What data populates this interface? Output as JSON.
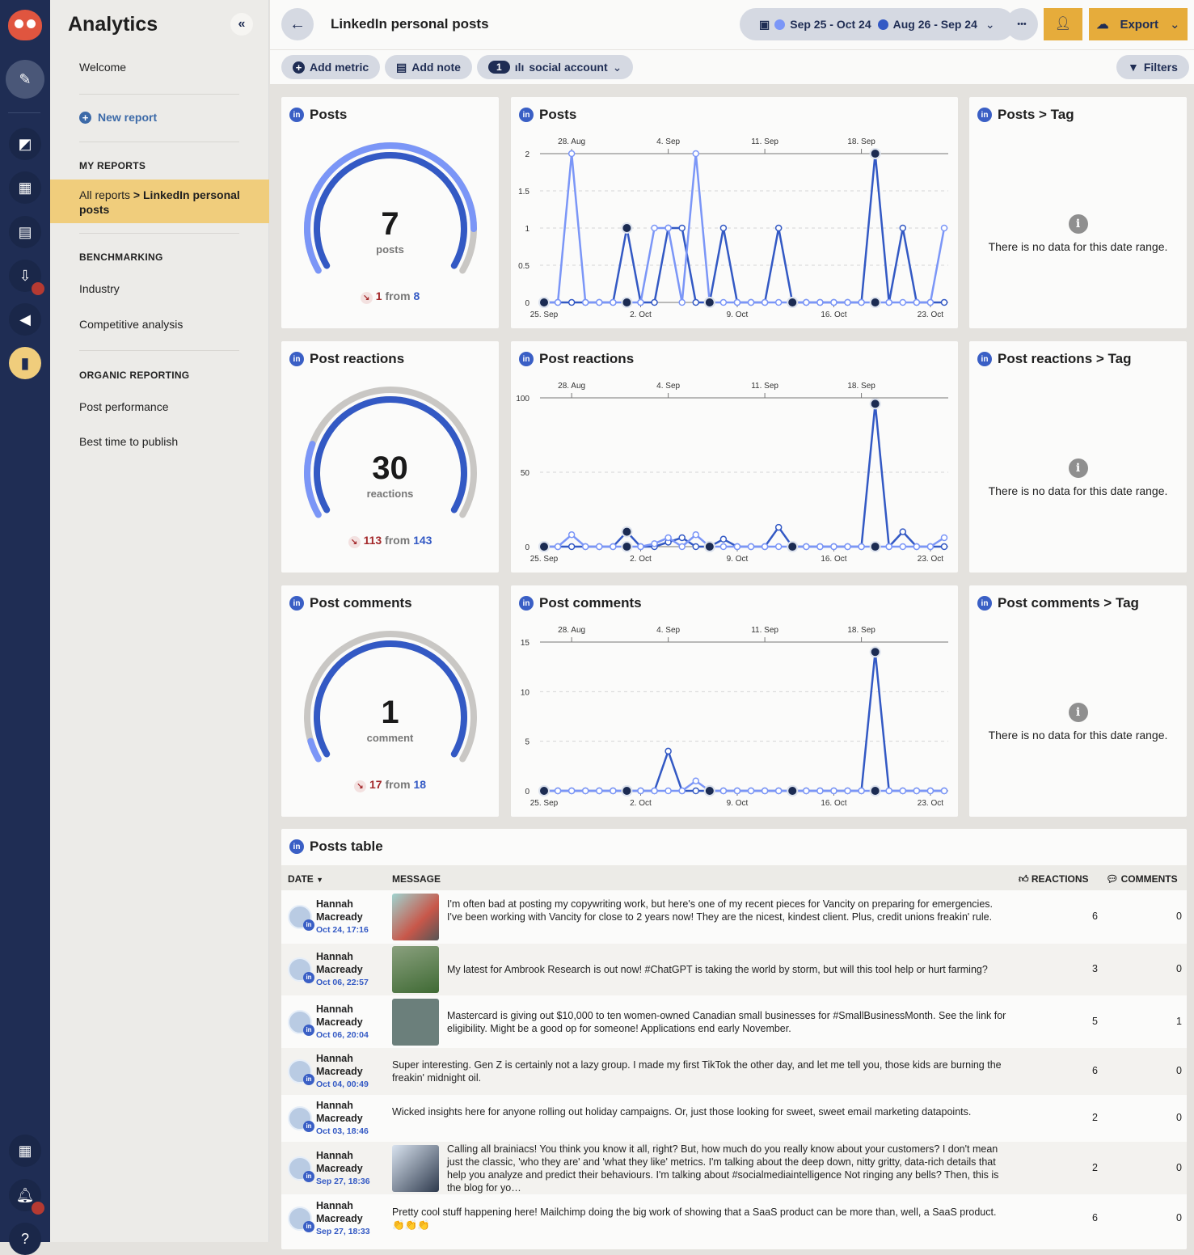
{
  "app": {
    "title": "Analytics",
    "collapse_icon": "double-chevron-left-icon"
  },
  "rail": {
    "icons": [
      "owl-logo",
      "compose-icon",
      "planner-icon",
      "dashboard-icon",
      "calendar-icon",
      "inbox-icon",
      "megaphone-icon",
      "analytics-icon",
      "apps-icon",
      "bell-icon",
      "help-icon"
    ],
    "active_color": "#f0cd7c",
    "badge_color": "#b53a32"
  },
  "sidebar": {
    "welcome": "Welcome",
    "new_report": "New report",
    "my_reports": "MY REPORTS",
    "crumb_prefix": "All reports",
    "crumb_sep": " > ",
    "crumb_current": "LinkedIn personal posts",
    "benchmarking": "BENCHMARKING",
    "industry": "Industry",
    "competitive": "Competitive analysis",
    "organic": "ORGANIC REPORTING",
    "post_performance": "Post performance",
    "best_time": "Best time to publish"
  },
  "header": {
    "title": "LinkedIn personal posts",
    "range_current": "Sep 25 - Oct 24",
    "range_previous": "Aug 26 - Sep 24",
    "current_color": "#7b96f7",
    "previous_color": "#3359c4",
    "more": "•••",
    "export": "Export",
    "accent": "#e6ac3b"
  },
  "toolbar": {
    "add_metric": "Add metric",
    "add_note": "Add note",
    "account_count": "1",
    "account_label": "social account",
    "filters": "Filters"
  },
  "gauges": [
    {
      "title": "Posts",
      "value": "7",
      "unit": "posts",
      "delta": "1",
      "from": "from",
      "previous": "8"
    },
    {
      "title": "Post reactions",
      "value": "30",
      "unit": "reactions",
      "delta": "113",
      "from": "from",
      "previous": "143"
    },
    {
      "title": "Post comments",
      "value": "1",
      "unit": "comment",
      "delta": "17",
      "from": "from",
      "previous": "18"
    }
  ],
  "tag_cards": [
    {
      "title": "Posts > Tag",
      "message": "There is no data for this date range."
    },
    {
      "title": "Post reactions > Tag",
      "message": "There is no data for this date range."
    },
    {
      "title": "Post comments > Tag",
      "message": "There is no data for this date range."
    }
  ],
  "chart_data": [
    {
      "type": "line",
      "title": "Posts",
      "ylim": [
        0,
        2
      ],
      "yticks": [
        "0",
        "0.5",
        "1",
        "1.5",
        "2"
      ],
      "ytick_values": [
        0,
        0.5,
        1,
        1.5,
        2
      ],
      "x_current_ticks": [
        "25. Sep",
        "2. Oct",
        "9. Oct",
        "16. Oct",
        "23. Oct"
      ],
      "x_previous_ticks": [
        "28. Aug",
        "4. Sep",
        "11. Sep",
        "18. Sep"
      ],
      "series": [
        {
          "name": "Sep 25 - Oct 24",
          "values": [
            0,
            0,
            2,
            0,
            0,
            0,
            0,
            0,
            1,
            1,
            0,
            2,
            0,
            0,
            0,
            0,
            0,
            0,
            0,
            0,
            0,
            0,
            0,
            0,
            0,
            0,
            0,
            0,
            0,
            1
          ]
        },
        {
          "name": "Aug 26 - Sep 24",
          "values": [
            0,
            0,
            0,
            0,
            0,
            0,
            1,
            0,
            0,
            1,
            1,
            0,
            0,
            1,
            0,
            0,
            0,
            1,
            0,
            0,
            0,
            0,
            0,
            0,
            2,
            0,
            1,
            0,
            0,
            0
          ]
        }
      ]
    },
    {
      "type": "line",
      "title": "Post reactions",
      "ylim": [
        0,
        100
      ],
      "yticks": [
        "0",
        "50",
        "100"
      ],
      "ytick_values": [
        0,
        50,
        100
      ],
      "x_current_ticks": [
        "25. Sep",
        "2. Oct",
        "9. Oct",
        "16. Oct",
        "23. Oct"
      ],
      "x_previous_ticks": [
        "28. Aug",
        "4. Sep",
        "11. Sep",
        "18. Sep"
      ],
      "series": [
        {
          "name": "Sep 25 - Oct 24",
          "values": [
            0,
            0,
            8,
            0,
            0,
            0,
            0,
            0,
            2,
            6,
            0,
            8,
            0,
            0,
            0,
            0,
            0,
            0,
            0,
            0,
            0,
            0,
            0,
            0,
            0,
            0,
            0,
            0,
            0,
            6
          ]
        },
        {
          "name": "Aug 26 - Sep 24",
          "values": [
            0,
            0,
            0,
            0,
            0,
            0,
            10,
            0,
            0,
            3,
            6,
            0,
            0,
            5,
            0,
            0,
            0,
            13,
            0,
            0,
            0,
            0,
            0,
            0,
            96,
            0,
            10,
            0,
            0,
            0
          ]
        }
      ]
    },
    {
      "type": "line",
      "title": "Post comments",
      "ylim": [
        0,
        15
      ],
      "yticks": [
        "0",
        "5",
        "10",
        "15"
      ],
      "ytick_values": [
        0,
        5,
        10,
        15
      ],
      "x_current_ticks": [
        "25. Sep",
        "2. Oct",
        "9. Oct",
        "16. Oct",
        "23. Oct"
      ],
      "x_previous_ticks": [
        "28. Aug",
        "4. Sep",
        "11. Sep",
        "18. Sep"
      ],
      "series": [
        {
          "name": "Sep 25 - Oct 24",
          "values": [
            0,
            0,
            0,
            0,
            0,
            0,
            0,
            0,
            0,
            0,
            0,
            1,
            0,
            0,
            0,
            0,
            0,
            0,
            0,
            0,
            0,
            0,
            0,
            0,
            0,
            0,
            0,
            0,
            0,
            0
          ]
        },
        {
          "name": "Aug 26 - Sep 24",
          "values": [
            0,
            0,
            0,
            0,
            0,
            0,
            0,
            0,
            0,
            4,
            0,
            0,
            0,
            0,
            0,
            0,
            0,
            0,
            0,
            0,
            0,
            0,
            0,
            0,
            14,
            0,
            0,
            0,
            0,
            0
          ]
        }
      ]
    }
  ],
  "table": {
    "title": "Posts table",
    "columns": {
      "date": "DATE",
      "message": "MESSAGE",
      "reactions": "REACTIONS",
      "comments": "COMMENTS"
    },
    "rows": [
      {
        "author": "Hannah Macready",
        "date": "Oct 24, 17:16",
        "image": "family-photo",
        "message": "I'm often bad at posting my copywriting work, but here's one of my recent pieces for Vancity on preparing for emergencies. I've been working with Vancity for close to 2 years now! They are the nicest, kindest client. Plus, credit unions freakin' rule.",
        "reactions": "6",
        "comments": "0"
      },
      {
        "author": "Hannah Macready",
        "date": "Oct 06, 22:57",
        "image": "farm-field",
        "message": "My latest for Ambrook Research is out now! #ChatGPT is taking the world by storm, but will this tool help or hurt farming?",
        "reactions": "3",
        "comments": "0"
      },
      {
        "author": "Hannah Macready",
        "date": "Oct 06, 20:04",
        "image": "mastercard-logo",
        "message": "Mastercard is giving out $10,000 to ten women-owned Canadian small businesses for #SmallBusinessMonth. See the link for eligibility. Might be a good op for someone! Applications end early November.",
        "reactions": "5",
        "comments": "1"
      },
      {
        "author": "Hannah Macready",
        "date": "Oct 04, 00:49",
        "image": "",
        "message": "Super interesting. Gen Z is certainly not a lazy group. I made my first TikTok the other day, and let me tell you, those kids are burning the freakin' midnight oil.",
        "reactions": "6",
        "comments": "0"
      },
      {
        "author": "Hannah Macready",
        "date": "Oct 03, 18:46",
        "image": "",
        "message": "Wicked insights here for anyone rolling out holiday campaigns. Or, just those looking for sweet, sweet email marketing datapoints.",
        "reactions": "2",
        "comments": "0"
      },
      {
        "author": "Hannah Macready",
        "date": "Sep 27, 18:36",
        "image": "laptop-screen",
        "message": "Calling all brainiacs! You think you know it all, right? But, how much do you really know about your customers? I don't mean just the classic, 'who they are' and 'what they like' metrics. I'm talking about the deep down, nitty gritty, data-rich details that help you analyze and predict their behaviours. I'm talking about #socialmediaintelligence Not ringing any bells? Then, this is the blog for yo…",
        "reactions": "2",
        "comments": "0"
      },
      {
        "author": "Hannah Macready",
        "date": "Sep 27, 18:33",
        "image": "",
        "message": "Pretty cool stuff happening here! Mailchimp doing the big work of showing that a SaaS product can be more than, well, a SaaS product. 👏👏👏",
        "reactions": "6",
        "comments": "0"
      }
    ]
  }
}
